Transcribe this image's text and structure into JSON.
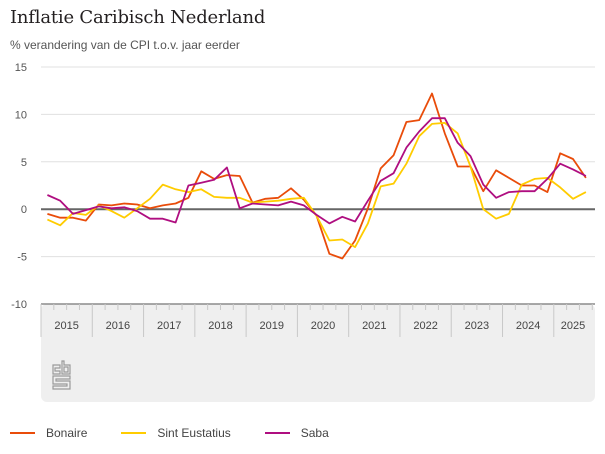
{
  "chart_data": {
    "type": "line",
    "title": "Inflatie Caribisch Nederland",
    "subtitle": "% verandering van de CPI t.o.v. jaar eerder",
    "xlabel": "",
    "ylabel": "",
    "ylim": [
      -10,
      15
    ],
    "yticks": [
      15,
      10,
      5,
      0,
      -5,
      -10
    ],
    "grid": true,
    "legend_position": "bottom-left",
    "x_granularity": "quarter",
    "year_labels": [
      "2015",
      "2016",
      "2017",
      "2018",
      "2019",
      "2020",
      "2021",
      "2022",
      "2023",
      "2024",
      "2025"
    ],
    "x": [
      "2015Q1",
      "2015Q2",
      "2015Q3",
      "2015Q4",
      "2016Q1",
      "2016Q2",
      "2016Q3",
      "2016Q4",
      "2017Q1",
      "2017Q2",
      "2017Q3",
      "2017Q4",
      "2018Q1",
      "2018Q2",
      "2018Q3",
      "2018Q4",
      "2019Q1",
      "2019Q2",
      "2019Q3",
      "2019Q4",
      "2020Q1",
      "2020Q2",
      "2020Q3",
      "2020Q4",
      "2021Q1",
      "2021Q2",
      "2021Q3",
      "2021Q4",
      "2022Q1",
      "2022Q2",
      "2022Q3",
      "2022Q4",
      "2023Q1",
      "2023Q2",
      "2023Q3",
      "2023Q4",
      "2024Q1",
      "2024Q2",
      "2024Q3",
      "2024Q4",
      "2025Q1",
      "2025Q2",
      "2025Q3"
    ],
    "series": [
      {
        "name": "Bonaire",
        "color": "#e94c0a",
        "values": [
          -0.5,
          -0.9,
          -0.9,
          -1.2,
          0.5,
          0.4,
          0.6,
          0.5,
          0.1,
          0.4,
          0.6,
          1.2,
          4.0,
          3.2,
          3.6,
          3.5,
          0.7,
          1.1,
          1.2,
          2.2,
          1.0,
          -0.7,
          -4.7,
          -5.2,
          -3.3,
          0.1,
          4.3,
          5.7,
          9.2,
          9.4,
          12.2,
          8.0,
          4.5,
          4.5,
          1.9,
          4.1,
          3.3,
          2.5,
          2.5,
          1.8,
          5.9,
          5.3,
          3.3
        ]
      },
      {
        "name": "Sint Eustatius",
        "color": "#ffcc00",
        "values": [
          -1.1,
          -1.7,
          -0.4,
          -0.6,
          0.4,
          -0.2,
          -0.9,
          0.1,
          1.1,
          2.6,
          2.1,
          1.8,
          2.1,
          1.3,
          1.2,
          1.2,
          0.7,
          0.8,
          0.9,
          1.1,
          1.2,
          -0.7,
          -3.3,
          -3.2,
          -4.0,
          -1.5,
          2.4,
          2.7,
          4.8,
          7.7,
          9.0,
          9.1,
          8.0,
          4.5,
          0.0,
          -1.0,
          -0.5,
          2.6,
          3.2,
          3.3,
          2.3,
          1.1,
          1.8
        ]
      },
      {
        "name": "Saba",
        "color": "#af0e80",
        "values": [
          1.5,
          0.9,
          -0.5,
          -0.1,
          0.3,
          0.1,
          0.2,
          -0.2,
          -1.0,
          -1.0,
          -1.4,
          2.5,
          2.8,
          3.1,
          4.4,
          0.1,
          0.6,
          0.5,
          0.4,
          0.8,
          0.4,
          -0.6,
          -1.5,
          -0.8,
          -1.3,
          0.9,
          3.0,
          3.8,
          6.5,
          8.2,
          9.6,
          9.6,
          7.0,
          5.6,
          2.6,
          1.2,
          1.8,
          1.9,
          1.9,
          3.2,
          4.8,
          4.2,
          3.5
        ]
      }
    ]
  },
  "branding": {
    "logo": "cbs-logo-icon"
  }
}
